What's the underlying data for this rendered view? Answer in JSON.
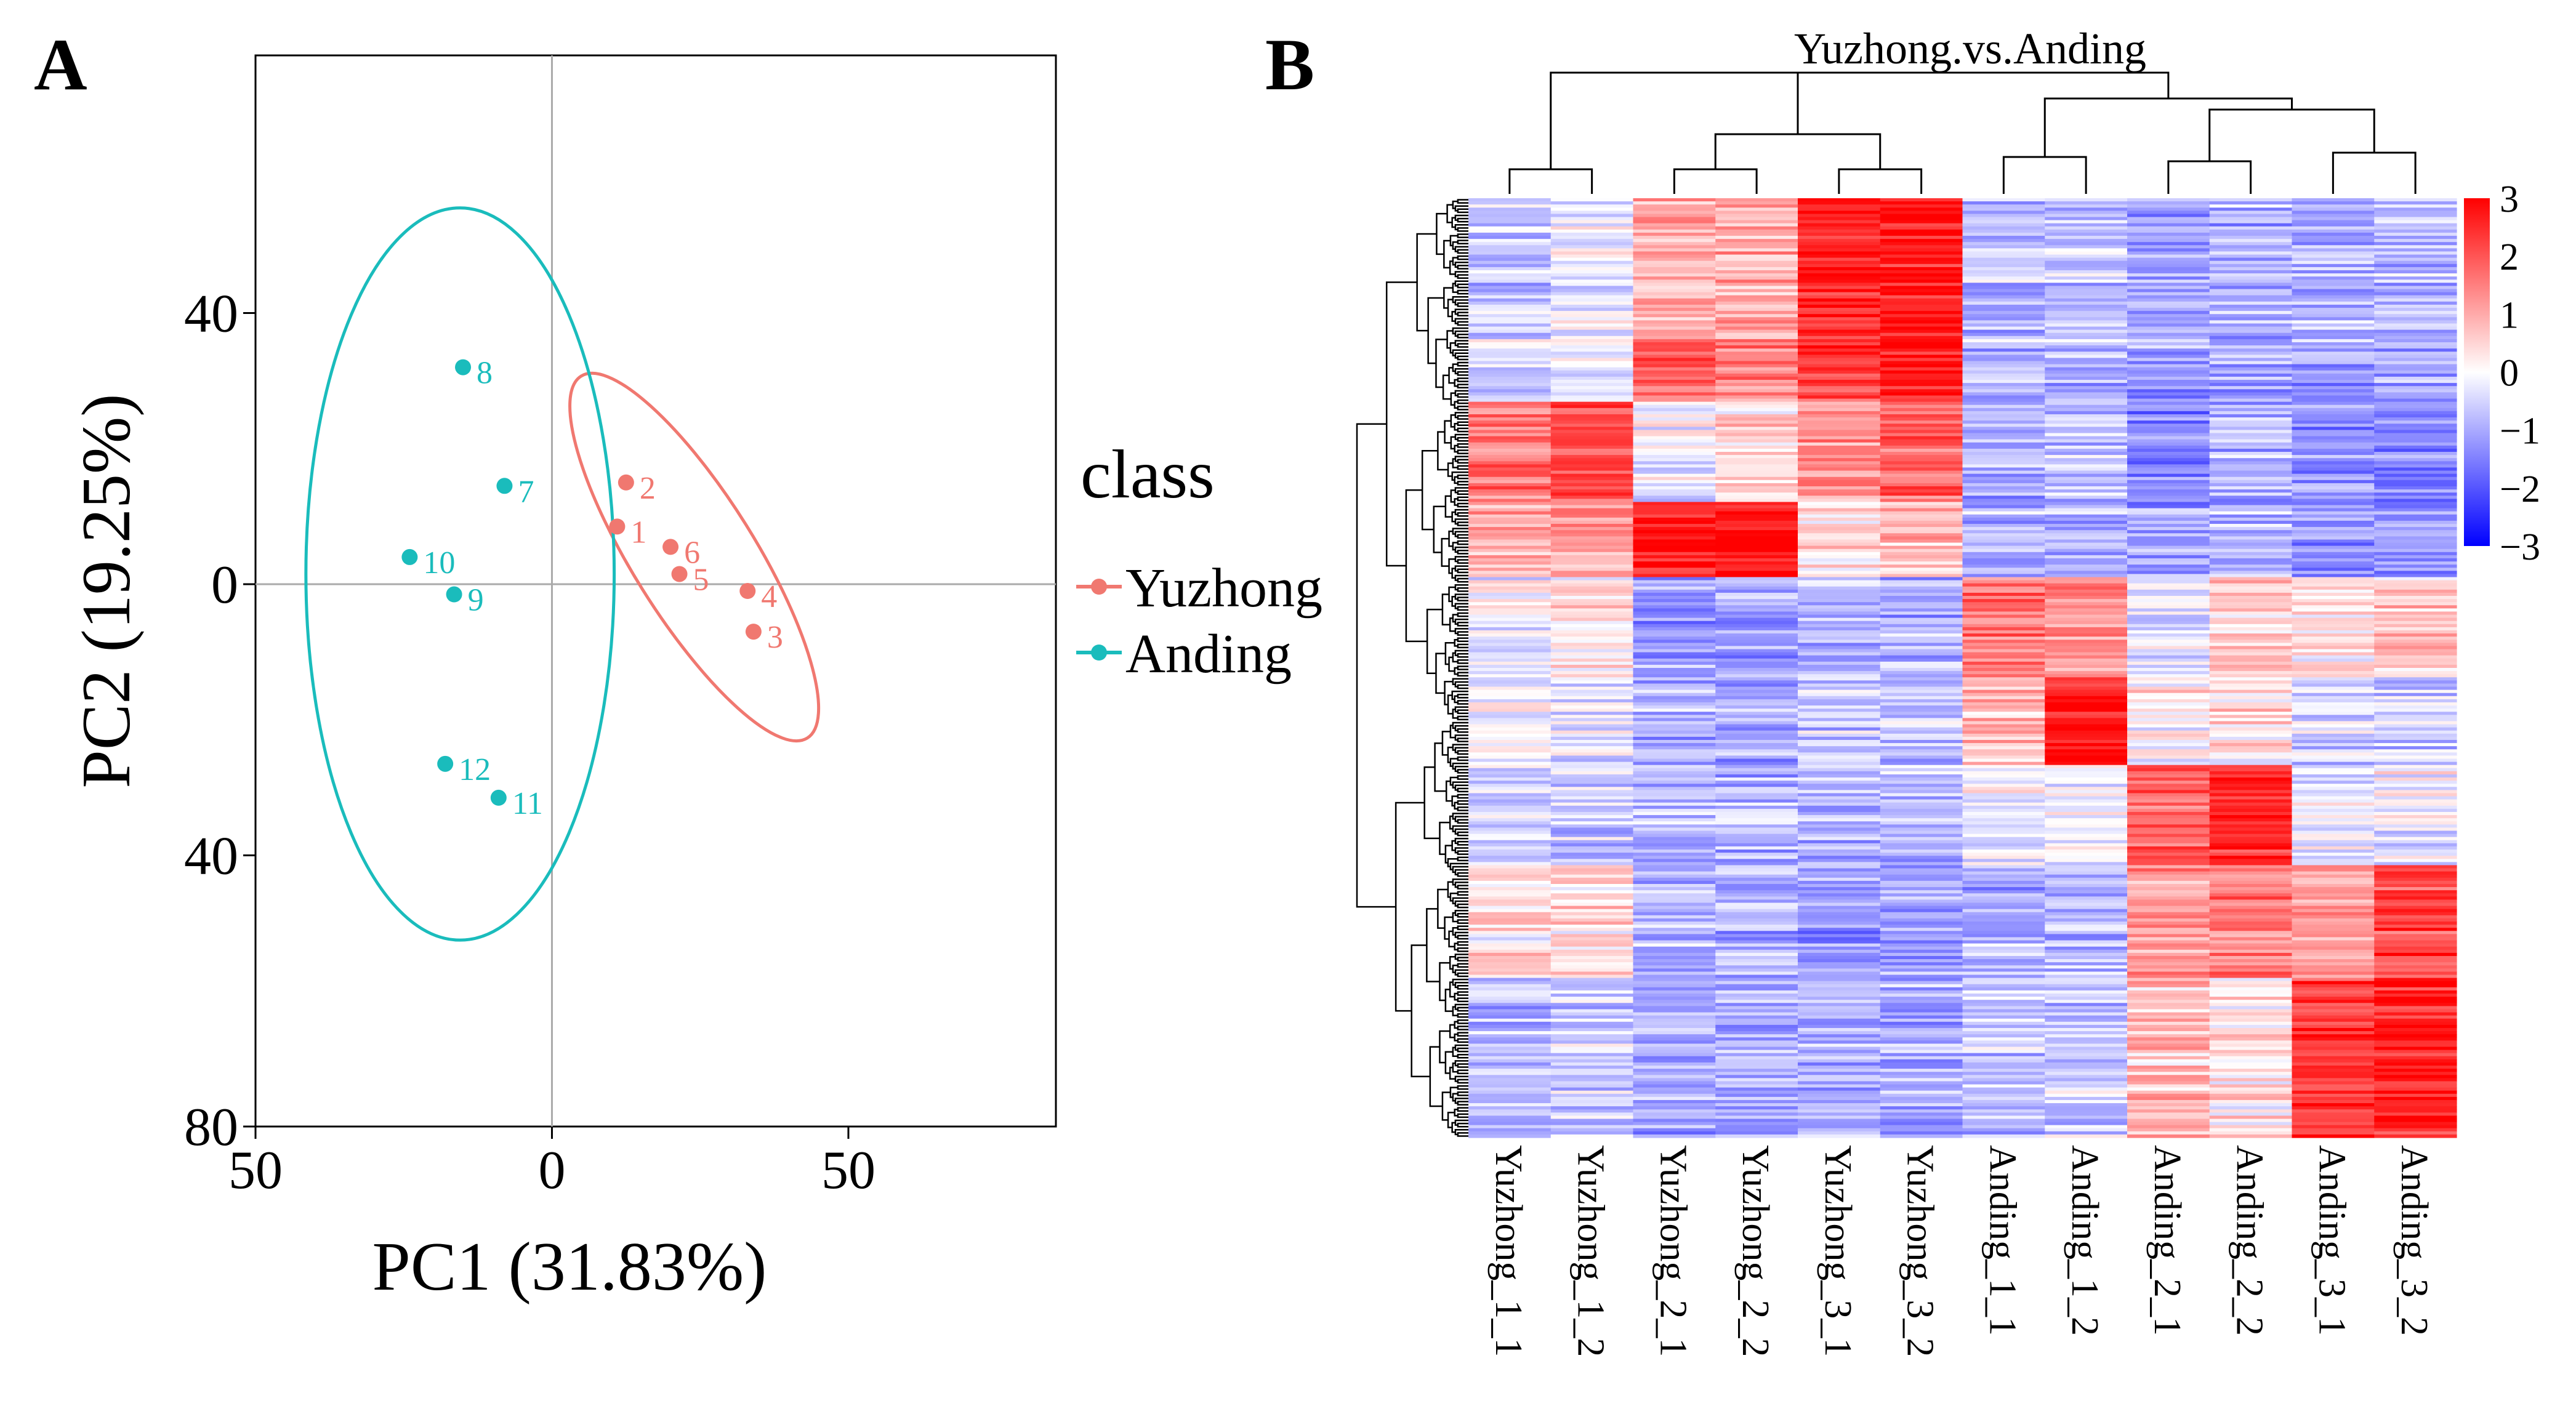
{
  "panel_a": {
    "letter": "A",
    "xlabel": "PC1 (31.83%)",
    "ylabel": "PC2 (19.25%)",
    "legend_title": "class",
    "colors": {
      "Yuzhong": "#F07870",
      "Anding": "#1ABCBC",
      "axis": "#000000",
      "zero": "#AAAAAA"
    }
  },
  "panel_b": {
    "letter": "B",
    "title": "Yuzhong.vs.Anding",
    "colorbar_ticks": [
      "3",
      "2",
      "1",
      "0",
      "−1",
      "−2",
      "−3"
    ]
  },
  "chart_data": [
    {
      "type": "scatter",
      "title": "",
      "xlabel": "PC1 (31.83%)",
      "ylabel": "PC2 (19.25%)",
      "xlim": [
        -50,
        85
      ],
      "ylim": [
        -80,
        78
      ],
      "xticks": [
        -50,
        0,
        50
      ],
      "xtick_labels": [
        "50",
        "0",
        "50"
      ],
      "yticks": [
        40,
        0,
        -40,
        -80
      ],
      "ytick_labels": [
        "40",
        "0",
        "40",
        "80"
      ],
      "legend_position": "right",
      "series": [
        {
          "name": "Yuzhong",
          "color": "#F07870",
          "points": [
            {
              "label": "1",
              "x": 11,
              "y": 8.5
            },
            {
              "label": "2",
              "x": 12.5,
              "y": 15
            },
            {
              "label": "3",
              "x": 34,
              "y": -7
            },
            {
              "label": "4",
              "x": 33,
              "y": -1
            },
            {
              "label": "5",
              "x": 21.5,
              "y": 1.5
            },
            {
              "label": "6",
              "x": 20,
              "y": 5.5
            }
          ],
          "ellipse": {
            "cx": 24,
            "cy": 4,
            "rx": 36,
            "ry": 9,
            "angle_deg": 58
          }
        },
        {
          "name": "Anding",
          "color": "#1ABCBC",
          "points": [
            {
              "label": "7",
              "x": -8,
              "y": 14.5
            },
            {
              "label": "8",
              "x": -15,
              "y": 32
            },
            {
              "label": "9",
              "x": -16.5,
              "y": -1.5
            },
            {
              "label": "10",
              "x": -24,
              "y": 4
            },
            {
              "label": "11",
              "x": -9,
              "y": -31.5
            },
            {
              "label": "12",
              "x": -18,
              "y": -26.5
            }
          ],
          "ellipse": {
            "cx": -15.5,
            "cy": 1.5,
            "rx": 26,
            "ry": 54,
            "angle_deg": 0
          }
        }
      ]
    },
    {
      "type": "heatmap",
      "title": "Yuzhong.vs.Anding",
      "columns": [
        "Yuzhong_1_1",
        "Yuzhong_1_2",
        "Yuzhong_2_1",
        "Yuzhong_2_2",
        "Yuzhong_3_1",
        "Yuzhong_3_2",
        "Anding_1_1",
        "Anding_1_2",
        "Anding_2_1",
        "Anding_2_2",
        "Anding_3_1",
        "Anding_3_2"
      ],
      "color_scale": {
        "min": -3,
        "max": 3,
        "colors": [
          "#0000FF",
          "#FFFFFF",
          "#FF0000"
        ]
      },
      "row_blocks": [
        {
          "values": [
            -0.6,
            -0.3,
            0.9,
            0.9,
            2.6,
            2.7,
            -0.8,
            -0.7,
            -1.1,
            -0.9,
            -0.9,
            -0.8
          ]
        },
        {
          "values": [
            -0.4,
            -0.4,
            1.9,
            1.4,
            2.3,
            2.6,
            -0.9,
            -0.9,
            -1.2,
            -1.0,
            -1.1,
            -1.0
          ]
        },
        {
          "values": [
            1.7,
            2.1,
            -0.1,
            0.4,
            1.4,
            1.9,
            -0.9,
            -0.6,
            -1.4,
            -0.8,
            -1.2,
            -1.3
          ]
        },
        {
          "values": [
            1.0,
            1.2,
            2.7,
            2.9,
            0.4,
            0.7,
            -0.9,
            -1.0,
            -1.0,
            -0.9,
            -1.3,
            -1.2
          ]
        },
        {
          "values": [
            -0.2,
            0.2,
            -1.2,
            -1.1,
            -0.9,
            -0.9,
            1.6,
            1.2,
            -0.4,
            0.6,
            0.3,
            0.7
          ]
        },
        {
          "values": [
            0.0,
            -0.4,
            -1.0,
            -0.9,
            -0.6,
            -0.7,
            0.9,
            2.9,
            0.2,
            0.3,
            -0.5,
            -0.6
          ]
        },
        {
          "values": [
            -0.6,
            -0.6,
            -0.9,
            -0.9,
            -1.0,
            -0.9,
            -0.2,
            -0.3,
            1.9,
            2.5,
            -0.3,
            -0.2
          ]
        },
        {
          "values": [
            0.3,
            0.5,
            -0.8,
            -0.9,
            -1.2,
            -1.1,
            -0.9,
            -0.9,
            1.2,
            1.5,
            1.1,
            2.2
          ]
        },
        {
          "values": [
            -0.8,
            -0.6,
            -1.0,
            -1.0,
            -1.0,
            -0.9,
            -0.7,
            -0.6,
            0.7,
            0.3,
            2.4,
            2.6
          ]
        }
      ],
      "row_block_weights": [
        11,
        5,
        8,
        6,
        8,
        7,
        8,
        9,
        12
      ],
      "colorbar_ticks": [
        3,
        2,
        1,
        0,
        -1,
        -2,
        -3
      ]
    }
  ]
}
